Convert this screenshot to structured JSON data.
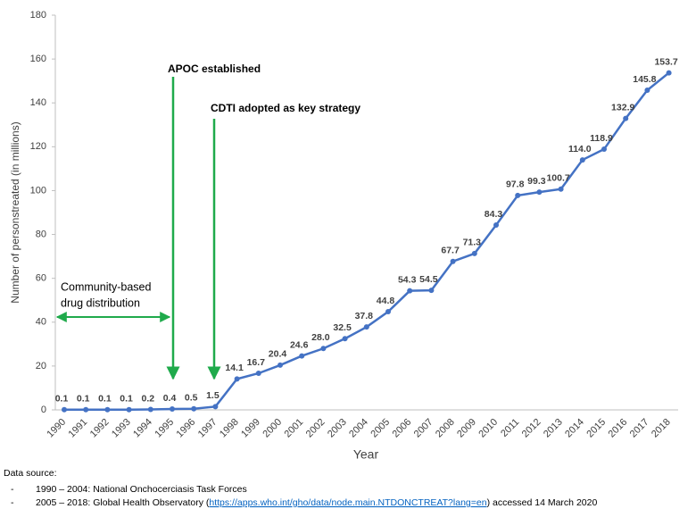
{
  "chart_data": {
    "type": "line",
    "y_label": "Number of personstreated (in millions)",
    "x_label": "Year",
    "categories": [
      "1990",
      "1991",
      "1992",
      "1993",
      "1994",
      "1995",
      "1996",
      "1997",
      "1998",
      "1999",
      "2000",
      "2001",
      "2002",
      "2003",
      "2004",
      "2005",
      "2006",
      "2007",
      "2008",
      "2009",
      "2010",
      "2011",
      "2012",
      "2013",
      "2014",
      "2015",
      "2016",
      "2017",
      "2018"
    ],
    "values": [
      0.1,
      0.1,
      0.1,
      0.1,
      0.2,
      0.4,
      0.5,
      1.5,
      14.1,
      16.7,
      20.4,
      24.6,
      28.0,
      32.5,
      37.8,
      44.8,
      54.3,
      54.5,
      67.7,
      71.3,
      84.3,
      97.8,
      99.3,
      100.7,
      114.0,
      118.9,
      132.9,
      145.8,
      153.7
    ],
    "value_labels": [
      "0.1",
      "0.1",
      "0.1",
      "0.1",
      "0.2",
      "0.4",
      "0.5",
      "1.5",
      "14.1",
      "16.7",
      "20.4",
      "24.6",
      "28.0",
      "32.5",
      "37.8",
      "44.8",
      "54.3",
      "54.5",
      "67.7",
      "71.3",
      "84.3",
      "97.8",
      "99.3",
      "100.7",
      "114.0",
      "118.9",
      "132.9",
      "145.8",
      "153.7"
    ],
    "color": "#4472c4",
    "ylim": [
      0,
      180
    ],
    "yticks": [
      0,
      20,
      40,
      60,
      80,
      100,
      120,
      140,
      160,
      180
    ],
    "grid": false,
    "annotations": [
      "APOC established",
      "CDTI adopted as key strategy",
      "Community-based",
      "drug distribution"
    ]
  },
  "footnote": {
    "heading": "Data source:",
    "items": [
      {
        "bullet": "-",
        "text": "1990 – 2004: National Onchocerciasis Task Forces"
      },
      {
        "bullet": "-",
        "text": "2005 – 2018: Global Health Observatory (",
        "link": "https://apps.who.int/gho/data/node.main.NTDONCTREAT?lang=en",
        "after": ") accessed 14 March 2020"
      }
    ]
  }
}
